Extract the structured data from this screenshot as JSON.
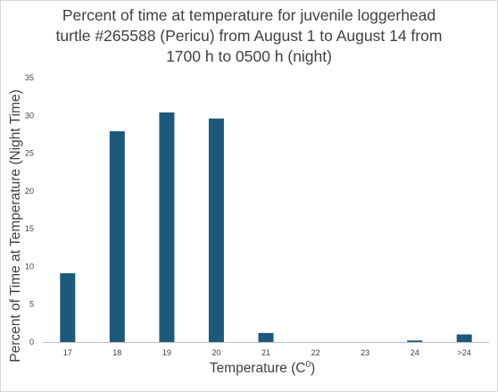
{
  "colors": {
    "bar": "#1b5a7a",
    "axis": "#bfbfbf",
    "text": "#404040"
  },
  "chart_data": {
    "type": "bar",
    "title_lines": [
      "Percent of time at temperature for juvenile loggerhead",
      "turtle #265588 (Pericu) from August 1 to August 14 from",
      "1700 h to 0500 h (night)"
    ],
    "xlabel": "Temperature (C",
    "xlabel_superscript": "0",
    "xlabel_suffix": ")",
    "ylabel": "Percent of Time at Temperature (Night Time)",
    "categories": [
      "17",
      "18",
      "19",
      "20",
      "21",
      "22",
      "23",
      "24",
      ">24"
    ],
    "values": [
      9.1,
      27.9,
      30.4,
      29.6,
      1.2,
      0,
      0,
      0.2,
      1.0
    ],
    "ylim": [
      0,
      35
    ],
    "yticks": [
      0,
      5,
      10,
      15,
      20,
      25,
      30,
      35
    ],
    "grid": false,
    "legend": "none"
  }
}
